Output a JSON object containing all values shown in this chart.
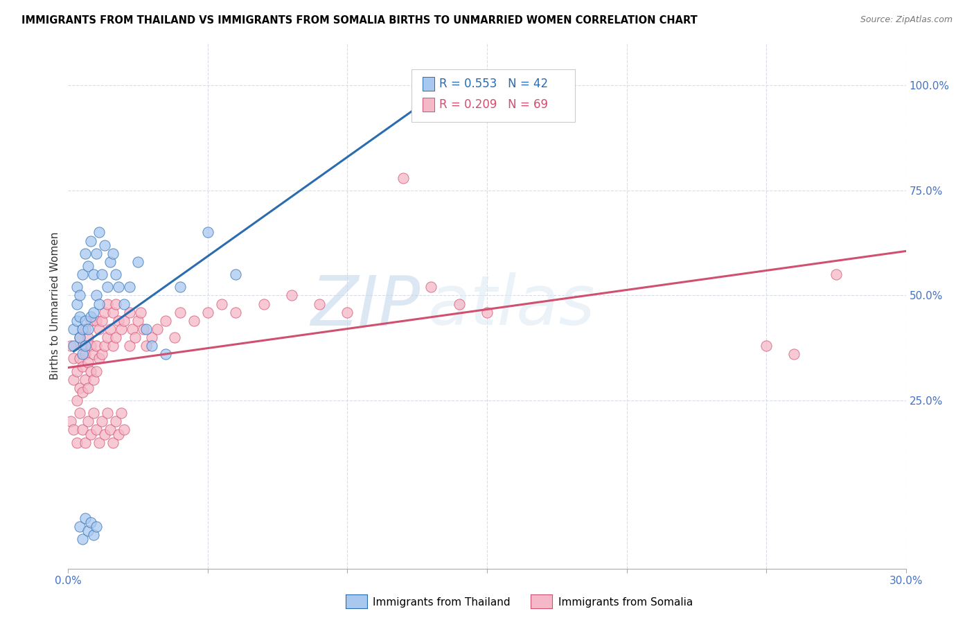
{
  "title": "IMMIGRANTS FROM THAILAND VS IMMIGRANTS FROM SOMALIA BIRTHS TO UNMARRIED WOMEN CORRELATION CHART",
  "source": "Source: ZipAtlas.com",
  "ylabel": "Births to Unmarried Women",
  "xlim": [
    0.0,
    0.3
  ],
  "ylim": [
    -0.15,
    1.1
  ],
  "yticks": [
    0.25,
    0.5,
    0.75,
    1.0
  ],
  "yticklabels": [
    "25.0%",
    "50.0%",
    "75.0%",
    "100.0%"
  ],
  "thailand_color": "#a8c8f0",
  "somalia_color": "#f4b8c8",
  "thailand_line_color": "#2b6cb0",
  "somalia_line_color": "#d05070",
  "R_thailand": 0.553,
  "N_thailand": 42,
  "R_somalia": 0.209,
  "N_somalia": 69,
  "watermark_zip": "ZIP",
  "watermark_atlas": "atlas",
  "background_color": "#ffffff",
  "grid_color": "#d8dce8",
  "thailand_x": [
    0.002,
    0.002,
    0.003,
    0.003,
    0.003,
    0.004,
    0.004,
    0.004,
    0.005,
    0.005,
    0.005,
    0.006,
    0.006,
    0.006,
    0.007,
    0.007,
    0.008,
    0.008,
    0.009,
    0.009,
    0.01,
    0.01,
    0.011,
    0.011,
    0.012,
    0.013,
    0.014,
    0.015,
    0.016,
    0.017,
    0.018,
    0.02,
    0.022,
    0.025,
    0.028,
    0.03,
    0.035,
    0.04,
    0.05,
    0.06,
    0.13,
    0.135
  ],
  "thailand_y": [
    0.38,
    0.42,
    0.44,
    0.48,
    0.52,
    0.4,
    0.45,
    0.5,
    0.36,
    0.42,
    0.55,
    0.38,
    0.44,
    0.6,
    0.42,
    0.57,
    0.45,
    0.63,
    0.46,
    0.55,
    0.5,
    0.6,
    0.48,
    0.65,
    0.55,
    0.62,
    0.52,
    0.58,
    0.6,
    0.55,
    0.52,
    0.48,
    0.52,
    0.58,
    0.42,
    0.38,
    0.36,
    0.52,
    0.65,
    0.55,
    0.98,
    1.0
  ],
  "thailand_x_outlier_low": [
    0.004,
    0.005,
    0.006,
    0.007,
    0.008,
    0.009,
    0.01
  ],
  "thailand_y_outlier_low": [
    -0.05,
    -0.08,
    -0.03,
    -0.06,
    -0.04,
    -0.07,
    -0.05
  ],
  "somalia_x": [
    0.001,
    0.002,
    0.002,
    0.003,
    0.003,
    0.004,
    0.004,
    0.004,
    0.005,
    0.005,
    0.005,
    0.006,
    0.006,
    0.006,
    0.007,
    0.007,
    0.007,
    0.008,
    0.008,
    0.008,
    0.009,
    0.009,
    0.01,
    0.01,
    0.01,
    0.011,
    0.011,
    0.012,
    0.012,
    0.013,
    0.013,
    0.014,
    0.014,
    0.015,
    0.016,
    0.016,
    0.017,
    0.017,
    0.018,
    0.019,
    0.02,
    0.022,
    0.022,
    0.023,
    0.024,
    0.025,
    0.026,
    0.027,
    0.028,
    0.03,
    0.032,
    0.035,
    0.038,
    0.04,
    0.045,
    0.05,
    0.055,
    0.06,
    0.07,
    0.08,
    0.09,
    0.1,
    0.12,
    0.13,
    0.14,
    0.15,
    0.25,
    0.26,
    0.275
  ],
  "somalia_y": [
    0.38,
    0.3,
    0.35,
    0.25,
    0.32,
    0.28,
    0.35,
    0.4,
    0.27,
    0.33,
    0.38,
    0.3,
    0.36,
    0.42,
    0.28,
    0.34,
    0.4,
    0.32,
    0.38,
    0.44,
    0.3,
    0.36,
    0.32,
    0.38,
    0.44,
    0.35,
    0.42,
    0.36,
    0.44,
    0.38,
    0.46,
    0.4,
    0.48,
    0.42,
    0.38,
    0.46,
    0.4,
    0.48,
    0.44,
    0.42,
    0.44,
    0.38,
    0.46,
    0.42,
    0.4,
    0.44,
    0.46,
    0.42,
    0.38,
    0.4,
    0.42,
    0.44,
    0.4,
    0.46,
    0.44,
    0.46,
    0.48,
    0.46,
    0.48,
    0.5,
    0.48,
    0.46,
    0.78,
    0.52,
    0.48,
    0.46,
    0.38,
    0.36,
    0.55
  ],
  "somalia_x_low": [
    0.001,
    0.002,
    0.003,
    0.004,
    0.005,
    0.006,
    0.007,
    0.008,
    0.009,
    0.01,
    0.011,
    0.012,
    0.013,
    0.014,
    0.015,
    0.016,
    0.017,
    0.018,
    0.019,
    0.02
  ],
  "somalia_y_low": [
    0.2,
    0.18,
    0.15,
    0.22,
    0.18,
    0.15,
    0.2,
    0.17,
    0.22,
    0.18,
    0.15,
    0.2,
    0.17,
    0.22,
    0.18,
    0.15,
    0.2,
    0.17,
    0.22,
    0.18
  ]
}
